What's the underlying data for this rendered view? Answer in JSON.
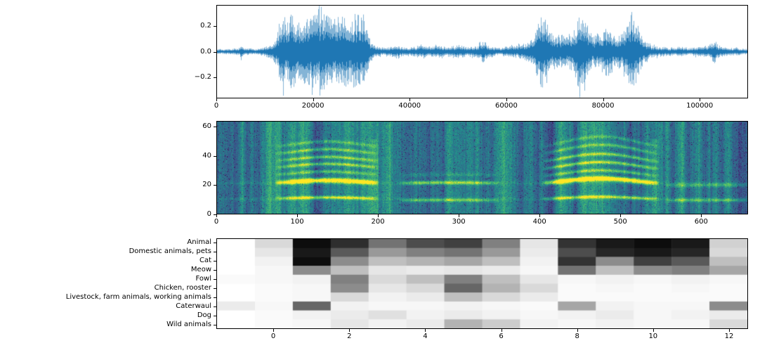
{
  "figure": {
    "background": "#ffffff"
  },
  "chart_data": [
    {
      "name": "audio-waveform",
      "type": "line",
      "series_color": "#1f77b4",
      "xlim": [
        0,
        110000
      ],
      "ylim": [
        -0.36,
        0.36
      ],
      "xticks": [
        0,
        20000,
        40000,
        60000,
        80000,
        100000
      ],
      "yticks": [
        {
          "v": 0.2,
          "label": "0.2"
        },
        {
          "v": 0.0,
          "label": "0.0"
        },
        {
          "v": -0.2,
          "label": "−0.2"
        }
      ],
      "envelope": [
        [
          0,
          0.02
        ],
        [
          3000,
          0.02
        ],
        [
          4500,
          0.03
        ],
        [
          5000,
          0.07
        ],
        [
          5500,
          0.03
        ],
        [
          8000,
          0.02
        ],
        [
          10000,
          0.04
        ],
        [
          11500,
          0.06
        ],
        [
          12500,
          0.14
        ],
        [
          13500,
          0.3
        ],
        [
          14500,
          0.24
        ],
        [
          15500,
          0.31
        ],
        [
          16500,
          0.22
        ],
        [
          17500,
          0.27
        ],
        [
          18500,
          0.25
        ],
        [
          19500,
          0.31
        ],
        [
          20500,
          0.28
        ],
        [
          21500,
          0.33
        ],
        [
          22500,
          0.29
        ],
        [
          23500,
          0.27
        ],
        [
          24500,
          0.25
        ],
        [
          25500,
          0.3
        ],
        [
          26500,
          0.28
        ],
        [
          27500,
          0.24
        ],
        [
          28500,
          0.3
        ],
        [
          29500,
          0.27
        ],
        [
          30500,
          0.29
        ],
        [
          31000,
          0.2
        ],
        [
          31800,
          0.08
        ],
        [
          33000,
          0.04
        ],
        [
          35000,
          0.03
        ],
        [
          37000,
          0.05
        ],
        [
          39000,
          0.03
        ],
        [
          41000,
          0.04
        ],
        [
          42500,
          0.06
        ],
        [
          44000,
          0.04
        ],
        [
          46000,
          0.05
        ],
        [
          48000,
          0.04
        ],
        [
          50000,
          0.05
        ],
        [
          52000,
          0.04
        ],
        [
          54000,
          0.05
        ],
        [
          55200,
          0.09
        ],
        [
          56500,
          0.04
        ],
        [
          58000,
          0.03
        ],
        [
          60000,
          0.04
        ],
        [
          62000,
          0.05
        ],
        [
          64000,
          0.07
        ],
        [
          65500,
          0.12
        ],
        [
          66500,
          0.22
        ],
        [
          67200,
          0.3
        ],
        [
          68000,
          0.26
        ],
        [
          69000,
          0.16
        ],
        [
          70000,
          0.12
        ],
        [
          71000,
          0.14
        ],
        [
          72500,
          0.12
        ],
        [
          74000,
          0.18
        ],
        [
          75200,
          0.32
        ],
        [
          76000,
          0.27
        ],
        [
          77000,
          0.16
        ],
        [
          78000,
          0.12
        ],
        [
          79000,
          0.14
        ],
        [
          80000,
          0.17
        ],
        [
          81000,
          0.2
        ],
        [
          82000,
          0.16
        ],
        [
          83000,
          0.13
        ],
        [
          84000,
          0.15
        ],
        [
          85000,
          0.22
        ],
        [
          86000,
          0.32
        ],
        [
          86800,
          0.25
        ],
        [
          88000,
          0.13
        ],
        [
          89000,
          0.08
        ],
        [
          90000,
          0.05
        ],
        [
          92000,
          0.04
        ],
        [
          94000,
          0.03
        ],
        [
          96000,
          0.04
        ],
        [
          98000,
          0.03
        ],
        [
          100000,
          0.04
        ],
        [
          102000,
          0.05
        ],
        [
          103000,
          0.1
        ],
        [
          104000,
          0.05
        ],
        [
          106000,
          0.03
        ],
        [
          108000,
          0.03
        ],
        [
          110000,
          0.02
        ]
      ]
    },
    {
      "name": "spectrogram",
      "type": "heatmap",
      "colormap": "viridis",
      "xlim": [
        0,
        658
      ],
      "ylim": [
        0,
        64
      ],
      "xticks": [
        0,
        100,
        200,
        300,
        400,
        500,
        600
      ],
      "yticks": [
        0,
        20,
        40,
        60
      ],
      "bands": [
        {
          "f": 10.5,
          "a": 0.07
        },
        {
          "f": 21.5,
          "a": 0.06
        }
      ],
      "events": [
        {
          "start": 72,
          "end": 200,
          "arc": 1.6,
          "burst": true,
          "lines": [
            {
              "f": 10.8,
              "a": 0.5,
              "sigma": 0.8
            },
            {
              "f": 21.8,
              "a": 0.85,
              "sigma": 1.1
            },
            {
              "f": 27.5,
              "a": 0.3,
              "sigma": 0.8
            },
            {
              "f": 32.5,
              "a": 0.4,
              "sigma": 0.8
            },
            {
              "f": 37.0,
              "a": 0.38,
              "sigma": 0.8
            },
            {
              "f": 42.0,
              "a": 0.33,
              "sigma": 0.8
            },
            {
              "f": 47.0,
              "a": 0.25,
              "sigma": 0.8
            }
          ]
        },
        {
          "start": 225,
          "end": 350,
          "arc": 0.4,
          "burst": false,
          "lines": [
            {
              "f": 9.5,
              "a": 0.35,
              "sigma": 0.8
            },
            {
              "f": 21.5,
              "a": 0.4,
              "sigma": 0.9
            },
            {
              "f": 27.0,
              "a": 0.12,
              "sigma": 0.8
            }
          ]
        },
        {
          "start": 403,
          "end": 548,
          "arc": 3.2,
          "burst": true,
          "lines": [
            {
              "f": 10.5,
              "a": 0.5,
              "sigma": 0.8
            },
            {
              "f": 21.5,
              "a": 0.9,
              "sigma": 1.1
            },
            {
              "f": 26.5,
              "a": 0.35,
              "sigma": 0.8
            },
            {
              "f": 31.5,
              "a": 0.45,
              "sigma": 0.8
            },
            {
              "f": 36.5,
              "a": 0.4,
              "sigma": 0.8
            },
            {
              "f": 42.0,
              "a": 0.3,
              "sigma": 0.8
            },
            {
              "f": 47.0,
              "a": 0.22,
              "sigma": 0.8
            }
          ]
        },
        {
          "start": 555,
          "end": 658,
          "arc": 0.2,
          "burst": false,
          "lines": [
            {
              "f": 9.5,
              "a": 0.3,
              "sigma": 0.8
            },
            {
              "f": 20.0,
              "a": 0.25,
              "sigma": 0.9
            }
          ]
        }
      ]
    },
    {
      "name": "tagging-probabilities",
      "type": "heatmap",
      "colormap": "gray_r",
      "row_labels": [
        "Animal",
        "Domestic animals, pets",
        "Cat",
        "Meow",
        "Fowl",
        "Chicken, rooster",
        "Livestock, farm animals, working animals",
        "Caterwaul",
        "Dog",
        "Wild animals"
      ],
      "xticks": [
        0,
        2,
        4,
        6,
        8,
        10,
        12
      ],
      "col_extent": [
        -1.5,
        12.5
      ],
      "values": [
        [
          0.0,
          0.15,
          0.95,
          0.82,
          0.55,
          0.7,
          0.75,
          0.5,
          0.1,
          0.8,
          0.9,
          0.95,
          0.9,
          0.18
        ],
        [
          0.0,
          0.1,
          0.9,
          0.65,
          0.4,
          0.5,
          0.55,
          0.4,
          0.08,
          0.7,
          0.85,
          0.9,
          0.85,
          0.15
        ],
        [
          0.0,
          0.05,
          0.95,
          0.45,
          0.25,
          0.3,
          0.35,
          0.25,
          0.05,
          0.8,
          0.45,
          0.75,
          0.65,
          0.25
        ],
        [
          0.0,
          0.03,
          0.45,
          0.25,
          0.1,
          0.08,
          0.1,
          0.08,
          0.03,
          0.55,
          0.25,
          0.45,
          0.5,
          0.35
        ],
        [
          0.02,
          0.03,
          0.05,
          0.5,
          0.15,
          0.25,
          0.5,
          0.25,
          0.1,
          0.03,
          0.05,
          0.03,
          0.05,
          0.03
        ],
        [
          0.0,
          0.02,
          0.03,
          0.45,
          0.1,
          0.15,
          0.6,
          0.3,
          0.15,
          0.02,
          0.03,
          0.02,
          0.03,
          0.02
        ],
        [
          0.0,
          0.02,
          0.03,
          0.15,
          0.05,
          0.08,
          0.25,
          0.15,
          0.08,
          0.02,
          0.02,
          0.02,
          0.02,
          0.02
        ],
        [
          0.08,
          0.03,
          0.6,
          0.05,
          0.03,
          0.03,
          0.05,
          0.03,
          0.02,
          0.35,
          0.05,
          0.03,
          0.03,
          0.45
        ],
        [
          0.0,
          0.02,
          0.05,
          0.08,
          0.12,
          0.05,
          0.08,
          0.05,
          0.03,
          0.05,
          0.08,
          0.03,
          0.05,
          0.08
        ],
        [
          0.0,
          0.02,
          0.03,
          0.1,
          0.05,
          0.08,
          0.3,
          0.2,
          0.05,
          0.03,
          0.05,
          0.03,
          0.03,
          0.15
        ]
      ]
    }
  ]
}
